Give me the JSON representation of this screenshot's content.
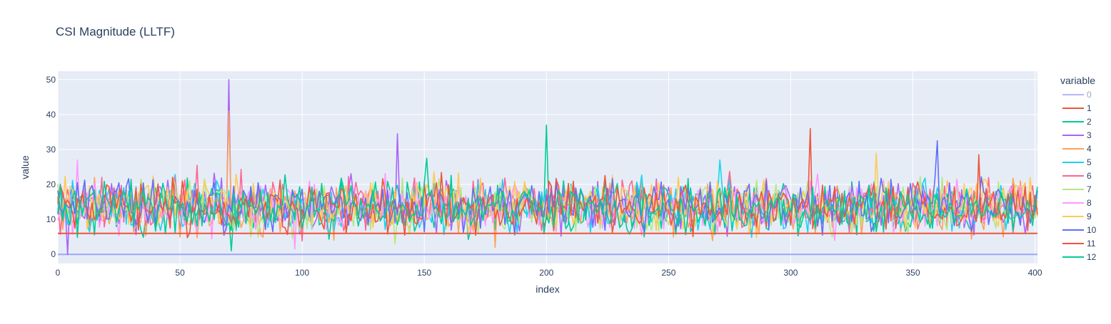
{
  "chart_data": {
    "type": "line",
    "title": "CSI Magnitude (LLTF)",
    "xlabel": "index",
    "ylabel": "value",
    "xlim": [
      0,
      401
    ],
    "ylim": [
      -2.6,
      52.4
    ],
    "x_ticks": [
      0,
      50,
      100,
      150,
      200,
      250,
      300,
      350,
      400
    ],
    "y_ticks": [
      0,
      10,
      20,
      30,
      40,
      50
    ],
    "grid": true,
    "legend": {
      "title": "variable",
      "position": "right"
    },
    "n_points": 402,
    "series": [
      {
        "name": "0",
        "color": "#636efa",
        "legend_dimmed": true,
        "constant": true,
        "mean": 0,
        "spikes": []
      },
      {
        "name": "1",
        "color": "#EF553B",
        "constant": true,
        "mean": 6,
        "spikes": []
      },
      {
        "name": "2",
        "color": "#00cc96",
        "mean": 13.5,
        "spikes": [
          [
            200,
            37
          ],
          [
            71,
            1
          ]
        ]
      },
      {
        "name": "3",
        "color": "#ab63fa",
        "mean": 14,
        "spikes": [
          [
            70,
            50
          ],
          [
            139,
            34.5
          ],
          [
            4,
            0
          ]
        ]
      },
      {
        "name": "4",
        "color": "#FFA15A",
        "mean": 13,
        "spikes": [
          [
            70,
            41
          ],
          [
            179,
            2
          ]
        ]
      },
      {
        "name": "5",
        "color": "#19d3f3",
        "mean": 13.5,
        "spikes": [
          [
            271,
            27
          ]
        ]
      },
      {
        "name": "6",
        "color": "#FF6692",
        "mean": 14,
        "spikes": [
          [
            57,
            25.5
          ]
        ]
      },
      {
        "name": "7",
        "color": "#B6E880",
        "mean": 13.5,
        "spikes": [
          [
            138,
            3
          ]
        ]
      },
      {
        "name": "8",
        "color": "#FF97FF",
        "mean": 13.5,
        "spikes": [
          [
            97,
            1.5
          ],
          [
            8,
            27
          ]
        ]
      },
      {
        "name": "9",
        "color": "#FECB52",
        "mean": 14.5,
        "spikes": [
          [
            335,
            29
          ]
        ]
      },
      {
        "name": "10",
        "color": "#636efa",
        "mean": 14,
        "spikes": [
          [
            360,
            32.5
          ]
        ]
      },
      {
        "name": "11",
        "color": "#EF553B",
        "mean": 13.5,
        "spikes": [
          [
            308,
            36
          ],
          [
            377,
            28.5
          ]
        ]
      },
      {
        "name": "12",
        "color": "#00cc96",
        "mean": 13.5,
        "spikes": [
          [
            151,
            27.5
          ]
        ]
      }
    ]
  }
}
